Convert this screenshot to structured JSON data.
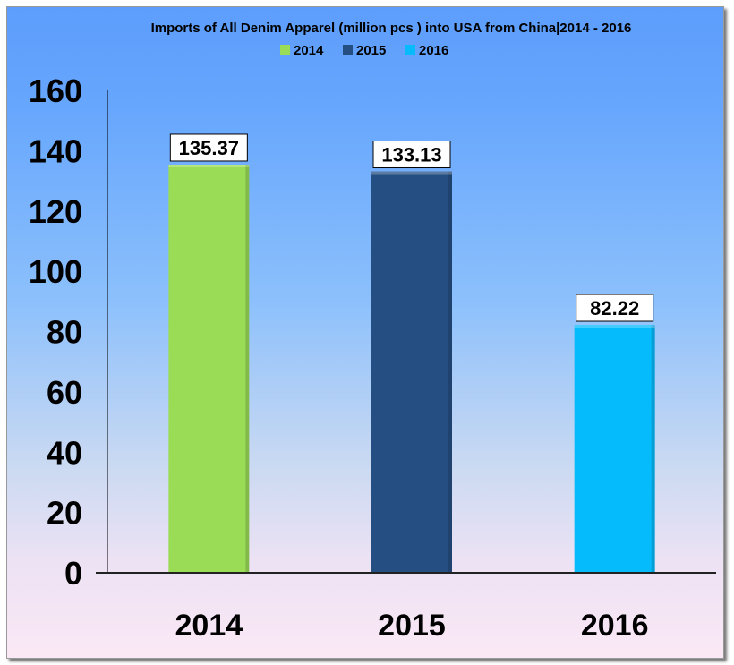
{
  "chart_data": {
    "type": "bar",
    "title": "Imports of All Denim Apparel (million pcs ) into USA from China|2014 - 2016",
    "categories": [
      "2014",
      "2015",
      "2016"
    ],
    "series": [
      {
        "name": "2014",
        "values": [
          135.37,
          null,
          null
        ],
        "color": "#9bdc57"
      },
      {
        "name": "2015",
        "values": [
          null,
          133.13,
          null
        ],
        "color": "#254f82"
      },
      {
        "name": "2016",
        "values": [
          null,
          null,
          82.22
        ],
        "color": "#06bbfb"
      }
    ],
    "data_labels": [
      "135.37",
      "133.13",
      "82.22"
    ],
    "yticks": [
      "0",
      "20",
      "40",
      "60",
      "80",
      "100",
      "120",
      "140",
      "160"
    ],
    "ylim": [
      0,
      160
    ],
    "xlabel": "",
    "ylabel": "",
    "grid": false,
    "legend": "top"
  }
}
